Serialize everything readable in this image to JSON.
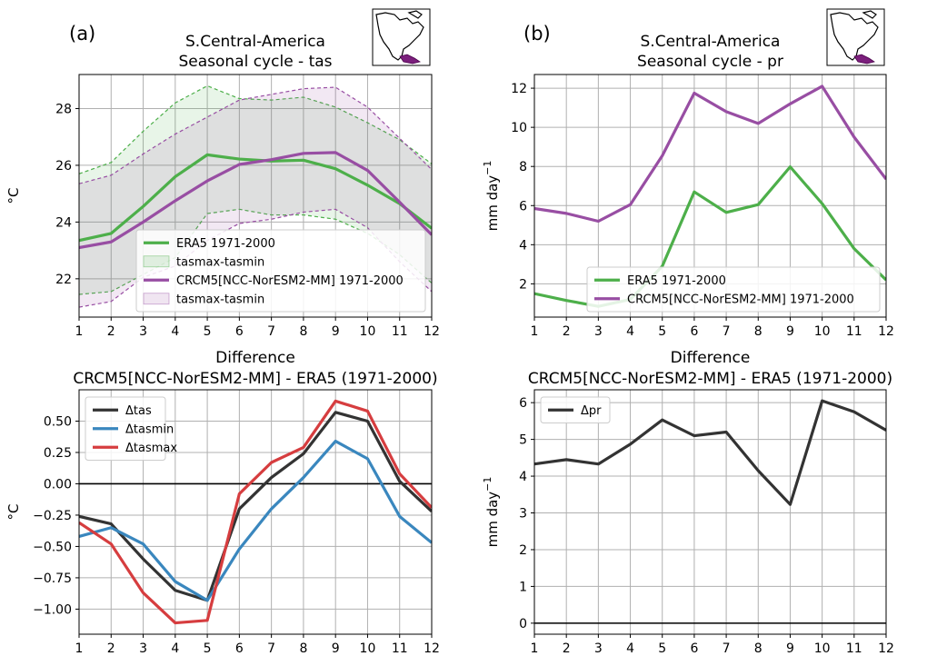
{
  "panel_letters": [
    "(a)",
    "(b)"
  ],
  "chart_data": [
    {
      "id": "tas",
      "type": "line",
      "title": [
        "S.Central-America",
        "Seasonal cycle - tas"
      ],
      "xlabel": "",
      "ylabel": "°C",
      "xlim": [
        1,
        12
      ],
      "ylim": [
        20.65,
        29.2
      ],
      "xticks": [
        1,
        2,
        3,
        4,
        5,
        6,
        7,
        8,
        9,
        10,
        11,
        12
      ],
      "yticks": [
        22,
        24,
        26,
        28
      ],
      "grid": true,
      "legend_position": "lower-right",
      "series": [
        {
          "name": "ERA5 1971-2000",
          "color": "#4daf4a",
          "x": [
            1,
            2,
            3,
            4,
            5,
            6,
            7,
            8,
            9,
            10,
            11,
            12
          ],
          "values": [
            23.35,
            23.6,
            24.55,
            25.6,
            26.37,
            26.22,
            26.15,
            26.18,
            25.88,
            25.3,
            24.65,
            23.78
          ]
        },
        {
          "name": "CRCM5[NCC-NorESM2-MM] 1971-2000",
          "color": "#984ea3",
          "x": [
            1,
            2,
            3,
            4,
            5,
            6,
            7,
            8,
            9,
            10,
            11,
            12
          ],
          "values": [
            23.1,
            23.3,
            24.0,
            24.75,
            25.45,
            26.03,
            26.2,
            26.42,
            26.45,
            25.82,
            24.7,
            23.55
          ]
        }
      ],
      "bands": [
        {
          "name": "tasmax-tasmin",
          "color": "#4daf4a",
          "x": [
            1,
            2,
            3,
            4,
            5,
            6,
            7,
            8,
            9,
            10,
            11,
            12
          ],
          "upper": [
            25.7,
            26.1,
            27.2,
            28.2,
            28.8,
            28.35,
            28.3,
            28.4,
            28.05,
            27.5,
            26.9,
            26.05
          ],
          "lower": [
            21.45,
            21.55,
            22.15,
            22.75,
            24.3,
            24.45,
            24.25,
            24.25,
            24.1,
            23.6,
            22.85,
            21.85
          ]
        },
        {
          "name": "tasmax-tasmin",
          "color": "#984ea3",
          "x": [
            1,
            2,
            3,
            4,
            5,
            6,
            7,
            8,
            9,
            10,
            11,
            12
          ],
          "upper": [
            25.35,
            25.65,
            26.4,
            27.1,
            27.7,
            28.3,
            28.5,
            28.7,
            28.75,
            28.05,
            26.95,
            25.85
          ],
          "lower": [
            21.0,
            21.2,
            22.05,
            22.45,
            23.35,
            23.95,
            24.1,
            24.35,
            24.45,
            23.8,
            22.6,
            21.55
          ]
        }
      ],
      "legend": [
        "ERA5 1971-2000",
        "tasmax-tasmin",
        "CRCM5[NCC-NorESM2-MM] 1971-2000",
        "tasmax-tasmin"
      ]
    },
    {
      "id": "pr",
      "type": "line",
      "title": [
        "S.Central-America",
        "Seasonal cycle - pr"
      ],
      "xlabel": "",
      "ylabel": "mm day",
      "ylabel_sup": "−1",
      "xlim": [
        1,
        12
      ],
      "ylim": [
        0.3,
        12.7
      ],
      "xticks": [
        1,
        2,
        3,
        4,
        5,
        6,
        7,
        8,
        9,
        10,
        11,
        12
      ],
      "yticks": [
        2,
        4,
        6,
        8,
        10,
        12
      ],
      "grid": true,
      "legend_position": "lower-right",
      "series": [
        {
          "name": "ERA5 1971-2000",
          "color": "#4daf4a",
          "x": [
            1,
            2,
            3,
            4,
            5,
            6,
            7,
            8,
            9,
            10,
            11,
            12
          ],
          "values": [
            1.5,
            1.15,
            0.85,
            1.2,
            2.9,
            6.7,
            5.65,
            6.05,
            7.98,
            6.1,
            3.8,
            2.2
          ]
        },
        {
          "name": "CRCM5[NCC-NorESM2-MM] 1971-2000",
          "color": "#984ea3",
          "x": [
            1,
            2,
            3,
            4,
            5,
            6,
            7,
            8,
            9,
            10,
            11,
            12
          ],
          "values": [
            5.85,
            5.6,
            5.2,
            6.05,
            8.55,
            11.75,
            10.8,
            10.2,
            11.2,
            12.1,
            9.5,
            7.35
          ]
        }
      ],
      "bands": [],
      "legend": [
        "ERA5 1971-2000",
        "CRCM5[NCC-NorESM2-MM] 1971-2000"
      ]
    },
    {
      "id": "dtas",
      "type": "line",
      "title": [
        "Difference",
        "CRCM5[NCC-NorESM2-MM] - ERA5 (1971-2000)"
      ],
      "xlabel": "",
      "ylabel": "°C",
      "xlim": [
        1,
        12
      ],
      "ylim": [
        -1.2,
        0.75
      ],
      "xticks": [
        1,
        2,
        3,
        4,
        5,
        6,
        7,
        8,
        9,
        10,
        11,
        12
      ],
      "yticks": [
        -1.0,
        -0.75,
        -0.5,
        -0.25,
        0.0,
        0.25,
        0.5
      ],
      "ytick_labels": [
        "−1.00",
        "−0.75",
        "−0.50",
        "−0.25",
        "0.00",
        "0.25",
        "0.50"
      ],
      "zero_line": true,
      "grid": true,
      "legend_position": "upper-left",
      "series": [
        {
          "name": "Δtas",
          "color": "#333333",
          "x": [
            1,
            2,
            3,
            4,
            5,
            6,
            7,
            8,
            9,
            10,
            11,
            12
          ],
          "values": [
            -0.26,
            -0.32,
            -0.6,
            -0.85,
            -0.93,
            -0.2,
            0.05,
            0.24,
            0.57,
            0.5,
            0.02,
            -0.22
          ]
        },
        {
          "name": "Δtasmin",
          "color": "#3a87be",
          "x": [
            1,
            2,
            3,
            4,
            5,
            6,
            7,
            8,
            9,
            10,
            11,
            12
          ],
          "values": [
            -0.42,
            -0.35,
            -0.48,
            -0.78,
            -0.93,
            -0.52,
            -0.2,
            0.05,
            0.34,
            0.2,
            -0.26,
            -0.47
          ]
        },
        {
          "name": "Δtasmax",
          "color": "#d63d3f",
          "x": [
            1,
            2,
            3,
            4,
            5,
            6,
            7,
            8,
            9,
            10,
            11,
            12
          ],
          "values": [
            -0.31,
            -0.48,
            -0.87,
            -1.11,
            -1.09,
            -0.08,
            0.17,
            0.29,
            0.66,
            0.58,
            0.08,
            -0.19
          ]
        }
      ],
      "bands": [],
      "legend": [
        "Δtas",
        "Δtasmin",
        "Δtasmax"
      ]
    },
    {
      "id": "dpr",
      "type": "line",
      "title": [
        "Difference",
        "CRCM5[NCC-NorESM2-MM] - ERA5 (1971-2000)"
      ],
      "xlabel": "",
      "ylabel": "mm day",
      "ylabel_sup": "−1",
      "xlim": [
        1,
        12
      ],
      "ylim": [
        -0.3,
        6.35
      ],
      "xticks": [
        1,
        2,
        3,
        4,
        5,
        6,
        7,
        8,
        9,
        10,
        11,
        12
      ],
      "yticks": [
        0,
        1,
        2,
        3,
        4,
        5,
        6
      ],
      "zero_line": true,
      "grid": true,
      "legend_position": "upper-left",
      "series": [
        {
          "name": "Δpr",
          "color": "#333333",
          "x": [
            1,
            2,
            3,
            4,
            5,
            6,
            7,
            8,
            9,
            10,
            11,
            12
          ],
          "values": [
            4.33,
            4.45,
            4.33,
            4.87,
            5.53,
            5.1,
            5.2,
            4.15,
            3.23,
            6.05,
            5.75,
            5.25
          ]
        }
      ],
      "bands": [],
      "legend": [
        "Δpr"
      ]
    }
  ]
}
